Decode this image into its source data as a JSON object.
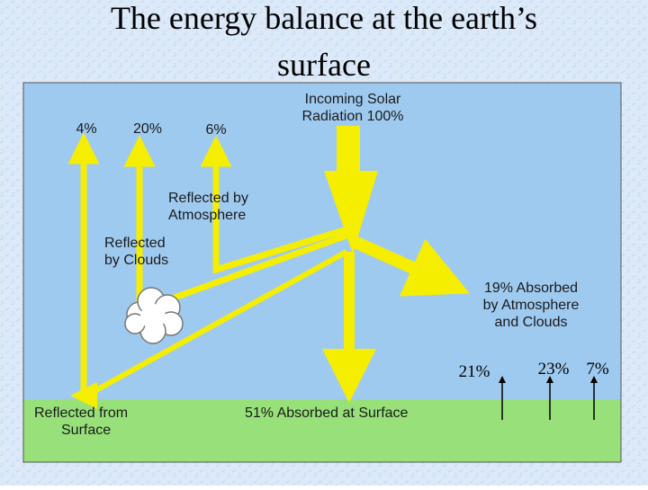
{
  "title": {
    "lines": [
      "The energy balance at the earth’s",
      "surface"
    ]
  },
  "labels": {
    "incoming": {
      "lines": [
        "Incoming Solar",
        "Radiation 100%"
      ]
    },
    "out_surface": "4%",
    "out_clouds": "20%",
    "out_atmosphere": "6%",
    "reflected_atmosphere": {
      "lines": [
        "Reflected by",
        "Atmosphere"
      ]
    },
    "reflected_clouds": {
      "lines": [
        "Reflected",
        "by Clouds"
      ]
    },
    "absorbed_atmosphere": {
      "lines": [
        "19% Absorbed",
        "by Atmosphere",
        "and Clouds"
      ]
    },
    "reflected_surface": {
      "lines": [
        "Reflected from",
        "Surface"
      ]
    },
    "absorbed_surface": "51% Absorbed at Surface"
  },
  "annotations": [
    "21%",
    "23%",
    "7%"
  ]
}
